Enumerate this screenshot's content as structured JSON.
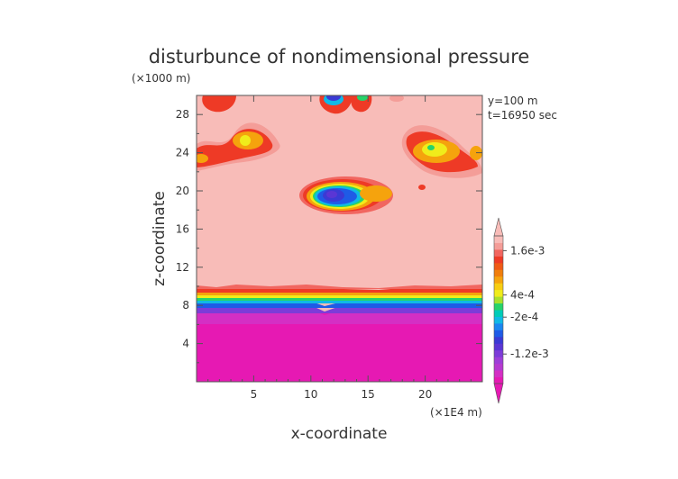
{
  "chart_data": {
    "type": "heatmap",
    "title": "disturbunce of nondimensional pressure",
    "xlabel": "x-coordinate",
    "ylabel": "z-coordinate",
    "x_unit": "(×1E4 m)",
    "y_unit": "(×1000 m)",
    "info": [
      "y=100 m",
      "t=16950 sec"
    ],
    "xlim": [
      0,
      25
    ],
    "ylim": [
      0,
      30
    ],
    "x_ticks": [
      5,
      10,
      15,
      20
    ],
    "y_ticks": [
      4,
      8,
      12,
      16,
      20,
      24,
      28
    ],
    "colorbar": {
      "labels": [
        {
          "text": "1.6e-3",
          "value": 0.0016
        },
        {
          "text": "4e-4",
          "value": 0.0004
        },
        {
          "text": "-2e-4",
          "value": -0.0002
        },
        {
          "text": "-1.2e-3",
          "value": -0.0012
        }
      ],
      "colors": [
        "#e619b3",
        "#d42fc4",
        "#b63ad0",
        "#9d3fd8",
        "#7d3cd8",
        "#5a36d4",
        "#3b3ad4",
        "#1f5be6",
        "#1b86f0",
        "#10b9e6",
        "#00ccb8",
        "#27d36a",
        "#a9e02b",
        "#f0ec1b",
        "#f7cd12",
        "#f5a30d",
        "#f07e0c",
        "#ef5a16",
        "#ee3a26",
        "#f16660",
        "#f49d98",
        "#f8bcb8"
      ]
    },
    "background_value": "1.6e-3",
    "regions": [
      {
        "name": "lower-low-pressure-layer",
        "z_range": [
          0,
          8.5
        ]
      },
      {
        "name": "transition-band",
        "z_range": [
          7.5,
          10
        ]
      },
      {
        "name": "mid-level-low-pressure-blob",
        "x_center": 12.3,
        "z_center": 19.4
      },
      {
        "name": "upper-left-cells",
        "x_range": [
          0,
          7
        ],
        "z_range": [
          22,
          30
        ]
      },
      {
        "name": "upper-right-cells",
        "x_range": [
          18,
          25
        ],
        "z_range": [
          22,
          27
        ]
      },
      {
        "name": "top-center-low-cells",
        "x_range": [
          11,
          15
        ],
        "z_range": [
          27.5,
          30
        ]
      }
    ]
  }
}
